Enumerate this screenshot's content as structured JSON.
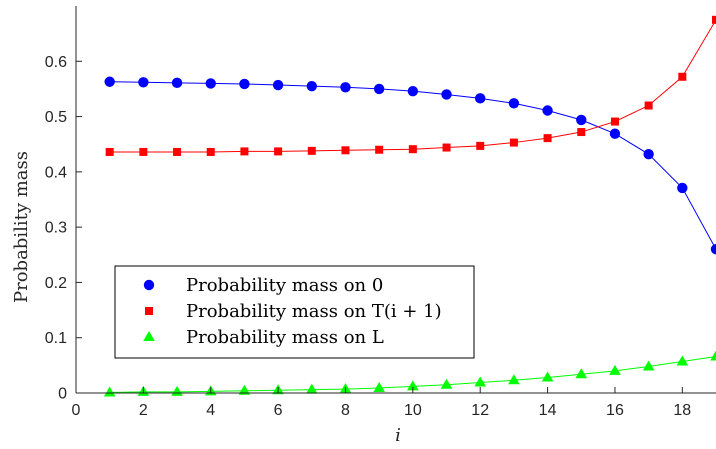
{
  "chart_data": {
    "type": "line",
    "xlabel": "i",
    "ylabel": "Probability mass",
    "xlim": [
      0,
      19
    ],
    "ylim": [
      0,
      0.7
    ],
    "xticks": [
      "0",
      "2",
      "4",
      "6",
      "8",
      "10",
      "12",
      "14",
      "16",
      "18"
    ],
    "yticks": [
      "0",
      "0.1",
      "0.2",
      "0.3",
      "0.4",
      "0.5",
      "0.6"
    ],
    "grid": false,
    "legend_position": "lower-left",
    "x": [
      1,
      2,
      3,
      4,
      5,
      6,
      7,
      8,
      9,
      10,
      11,
      12,
      13,
      14,
      15,
      16,
      17,
      18,
      19
    ],
    "series": [
      {
        "name": "Probability mass on 0",
        "marker": "circle",
        "color": "#0000ff",
        "values": [
          0.563,
          0.562,
          0.561,
          0.56,
          0.559,
          0.557,
          0.555,
          0.553,
          0.55,
          0.546,
          0.54,
          0.533,
          0.524,
          0.511,
          0.494,
          0.469,
          0.432,
          0.371,
          0.26
        ]
      },
      {
        "name": "Probability mass on T(i + 1)",
        "marker": "square",
        "color": "#ff0000",
        "values": [
          0.436,
          0.436,
          0.436,
          0.436,
          0.437,
          0.437,
          0.438,
          0.439,
          0.44,
          0.441,
          0.444,
          0.447,
          0.453,
          0.461,
          0.472,
          0.491,
          0.52,
          0.572,
          0.675
        ]
      },
      {
        "name": "Probability mass on L",
        "marker": "triangle",
        "color": "#00ff00",
        "values": [
          0.001,
          0.002,
          0.002,
          0.003,
          0.004,
          0.005,
          0.006,
          0.007,
          0.009,
          0.012,
          0.015,
          0.019,
          0.023,
          0.028,
          0.034,
          0.04,
          0.048,
          0.057,
          0.066
        ]
      }
    ]
  }
}
